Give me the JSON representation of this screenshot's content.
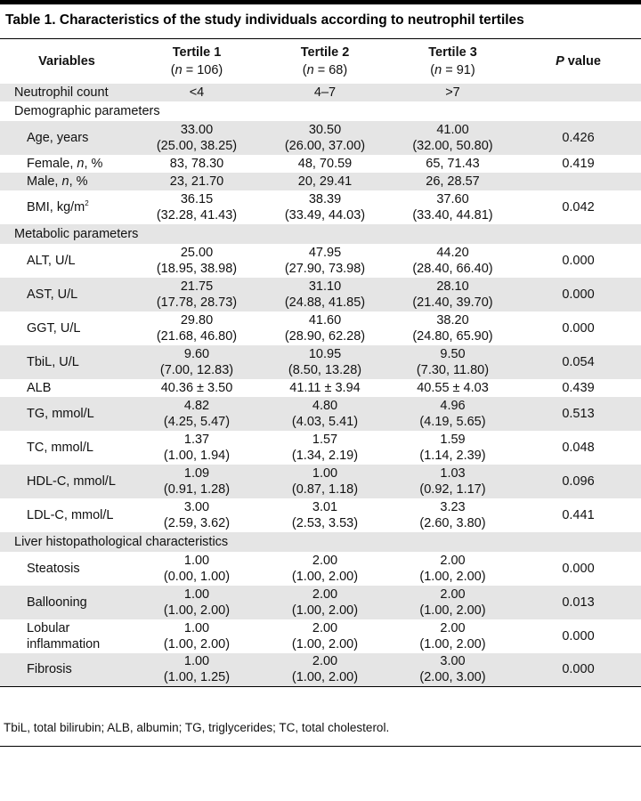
{
  "caption": "Table 1. Characteristics of the study individuals according to neutrophil tertiles",
  "header": {
    "variables": "Variables",
    "t1_title": "Tertile 1",
    "t1_n_pre": "(",
    "t1_n_it": "n",
    "t1_n_post": " = 106)",
    "t2_title": "Tertile 2",
    "t2_n_pre": "(",
    "t2_n_it": "n",
    "t2_n_post": " = 68)",
    "t3_title": "Tertile 3",
    "t3_n_pre": "(",
    "t3_n_it": "n",
    "t3_n_post": " = 91)",
    "p_it": "P",
    "p_post": " value"
  },
  "rows": {
    "neutrophil": {
      "label": "Neutrophil count",
      "t1": "<4",
      "t2": "4–7",
      "t3": ">7",
      "p": ""
    },
    "sec_demo": "Demographic parameters",
    "age": {
      "label": "Age, years",
      "t1a": "33.00",
      "t1b": "(25.00, 38.25)",
      "t2a": "30.50",
      "t2b": "(26.00, 37.00)",
      "t3a": "41.00",
      "t3b": "(32.00, 50.80)",
      "p": "0.426"
    },
    "female": {
      "label_pre": "Female, ",
      "label_it": "n",
      "label_post": ", %",
      "t1": "83, 78.30",
      "t2": "48, 70.59",
      "t3": "65, 71.43",
      "p": "0.419"
    },
    "male": {
      "label_pre": "Male, ",
      "label_it": "n",
      "label_post": ", %",
      "t1": "23, 21.70",
      "t2": "20, 29.41",
      "t3": "26, 28.57",
      "p": ""
    },
    "bmi": {
      "label": "BMI, kg/m",
      "sup": "2",
      "t1a": "36.15",
      "t1b": "(32.28, 41.43)",
      "t2a": "38.39",
      "t2b": "(33.49, 44.03)",
      "t3a": "37.60",
      "t3b": "(33.40, 44.81)",
      "p": "0.042"
    },
    "sec_meta": "Metabolic parameters",
    "alt": {
      "label": "ALT, U/L",
      "t1a": "25.00",
      "t1b": "(18.95, 38.98)",
      "t2a": "47.95",
      "t2b": "(27.90, 73.98)",
      "t3a": "44.20",
      "t3b": "(28.40, 66.40)",
      "p": "0.000"
    },
    "ast": {
      "label": "AST, U/L",
      "t1a": "21.75",
      "t1b": "(17.78, 28.73)",
      "t2a": "31.10",
      "t2b": "(24.88, 41.85)",
      "t3a": "28.10",
      "t3b": "(21.40, 39.70)",
      "p": "0.000"
    },
    "ggt": {
      "label": "GGT, U/L",
      "t1a": "29.80",
      "t1b": "(21.68, 46.80)",
      "t2a": "41.60",
      "t2b": "(28.90, 62.28)",
      "t3a": "38.20",
      "t3b": "(24.80, 65.90)",
      "p": "0.000"
    },
    "tbil": {
      "label": "TbiL, U/L",
      "t1a": "9.60",
      "t1b": "(7.00, 12.83)",
      "t2a": "10.95",
      "t2b": "(8.50, 13.28)",
      "t3a": "9.50",
      "t3b": "(7.30, 11.80)",
      "p": "0.054"
    },
    "alb": {
      "label": "ALB",
      "t1": "40.36 ± 3.50",
      "t2": "41.11 ± 3.94",
      "t3": "40.55 ± 4.03",
      "p": "0.439"
    },
    "tg": {
      "label": "TG, mmol/L",
      "t1a": "4.82",
      "t1b": "(4.25, 5.47)",
      "t2a": "4.80",
      "t2b": "(4.03, 5.41)",
      "t3a": "4.96",
      "t3b": "(4.19, 5.65)",
      "p": "0.513"
    },
    "tc": {
      "label": "TC, mmol/L",
      "t1a": "1.37",
      "t1b": "(1.00, 1.94)",
      "t2a": "1.57",
      "t2b": "(1.34, 2.19)",
      "t3a": "1.59",
      "t3b": "(1.14, 2.39)",
      "p": "0.048"
    },
    "hdl": {
      "label": "HDL-C, mmol/L",
      "t1a": "1.09",
      "t1b": "(0.91, 1.28)",
      "t2a": "1.00",
      "t2b": "(0.87, 1.18)",
      "t3a": "1.03",
      "t3b": "(0.92, 1.17)",
      "p": "0.096"
    },
    "ldl": {
      "label": "LDL-C, mmol/L",
      "t1a": "3.00",
      "t1b": "(2.59, 3.62)",
      "t2a": "3.01",
      "t2b": "(2.53, 3.53)",
      "t3a": "3.23",
      "t3b": "(2.60, 3.80)",
      "p": "0.441"
    },
    "sec_liver": "Liver histopathological characteristics",
    "steatosis": {
      "label": "Steatosis",
      "t1a": "1.00",
      "t1b": "(0.00, 1.00)",
      "t2a": "2.00",
      "t2b": "(1.00, 2.00)",
      "t3a": "2.00",
      "t3b": "(1.00, 2.00)",
      "p": "0.000"
    },
    "ballooning": {
      "label": "Ballooning",
      "t1a": "1.00",
      "t1b": "(1.00, 2.00)",
      "t2a": "2.00",
      "t2b": "(1.00, 2.00)",
      "t3a": "2.00",
      "t3b": "(1.00, 2.00)",
      "p": "0.013"
    },
    "lobular": {
      "label_a": "Lobular",
      "label_b": "inflammation",
      "t1a": "1.00",
      "t1b": "(1.00, 2.00)",
      "t2a": "2.00",
      "t2b": "(1.00, 2.00)",
      "t3a": "2.00",
      "t3b": "(1.00, 2.00)",
      "p": "0.000"
    },
    "fibrosis": {
      "label": "Fibrosis",
      "t1a": "1.00",
      "t1b": "(1.00, 1.25)",
      "t2a": "2.00",
      "t2b": "(1.00, 2.00)",
      "t3a": "3.00",
      "t3b": "(2.00, 3.00)",
      "p": "0.000"
    }
  },
  "footnote": "TbiL, total bilirubin; ALB, albumin; TG, triglycerides; TC, total cholesterol.",
  "colors": {
    "stripe": "#e5e5e5",
    "rule": "#000000"
  }
}
